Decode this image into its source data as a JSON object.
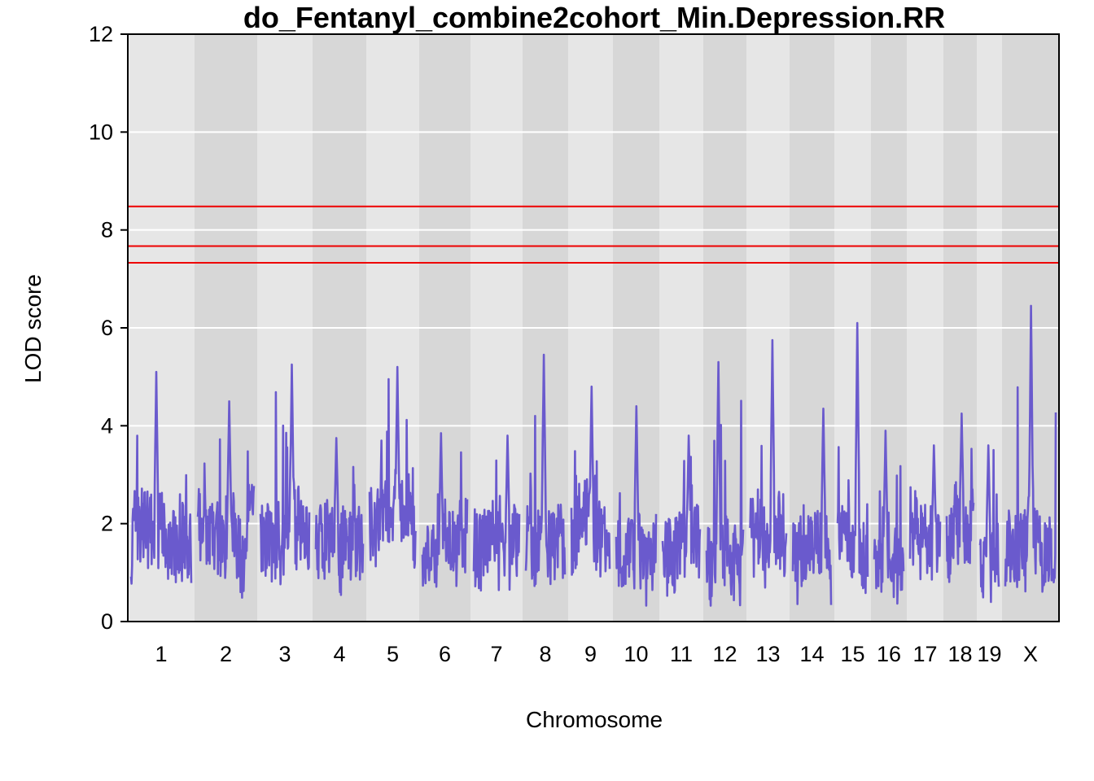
{
  "chart_data": {
    "type": "line",
    "title": "do_Fentanyl_combine2cohort_Min.Depression.RR",
    "xlabel": "Chromosome",
    "ylabel": "LOD score",
    "ylim": [
      0,
      12
    ],
    "yticks": [
      0,
      2,
      4,
      6,
      8,
      10,
      12
    ],
    "grid": true,
    "line_color": "#6a5acd",
    "threshold_color": "#ee0000",
    "thresholds": [
      8.48,
      7.67,
      7.33
    ],
    "chromosomes": [
      {
        "label": "1",
        "length": 82,
        "peak": 5.1,
        "base": 1.6
      },
      {
        "label": "2",
        "length": 77,
        "peak": 4.5,
        "base": 1.7
      },
      {
        "label": "3",
        "length": 68,
        "peak": 5.25,
        "base": 1.7
      },
      {
        "label": "4",
        "length": 66,
        "peak": 3.75,
        "base": 1.7
      },
      {
        "label": "5",
        "length": 65,
        "peak": 5.2,
        "base": 1.9
      },
      {
        "label": "6",
        "length": 63,
        "peak": 3.85,
        "base": 1.4
      },
      {
        "label": "7",
        "length": 64,
        "peak": 3.8,
        "base": 1.5
      },
      {
        "label": "8",
        "length": 56,
        "peak": 5.45,
        "base": 1.6
      },
      {
        "label": "9",
        "length": 55,
        "peak": 4.8,
        "base": 1.7
      },
      {
        "label": "10",
        "length": 57,
        "peak": 4.4,
        "base": 1.4
      },
      {
        "label": "11",
        "length": 54,
        "peak": 3.8,
        "base": 1.5
      },
      {
        "label": "12",
        "length": 53,
        "peak": 5.3,
        "base": 1.3
      },
      {
        "label": "13",
        "length": 53,
        "peak": 5.75,
        "base": 1.6
      },
      {
        "label": "14",
        "length": 55,
        "peak": 4.35,
        "base": 1.5
      },
      {
        "label": "15",
        "length": 45,
        "peak": 6.1,
        "base": 1.5
      },
      {
        "label": "16",
        "length": 44,
        "peak": 3.9,
        "base": 1.3
      },
      {
        "label": "17",
        "length": 45,
        "peak": 3.6,
        "base": 1.5
      },
      {
        "label": "18",
        "length": 41,
        "peak": 4.25,
        "base": 1.8
      },
      {
        "label": "19",
        "length": 31,
        "peak": 3.6,
        "base": 1.3
      },
      {
        "label": "X",
        "length": 70,
        "peak": 6.45,
        "base": 1.5
      }
    ]
  }
}
